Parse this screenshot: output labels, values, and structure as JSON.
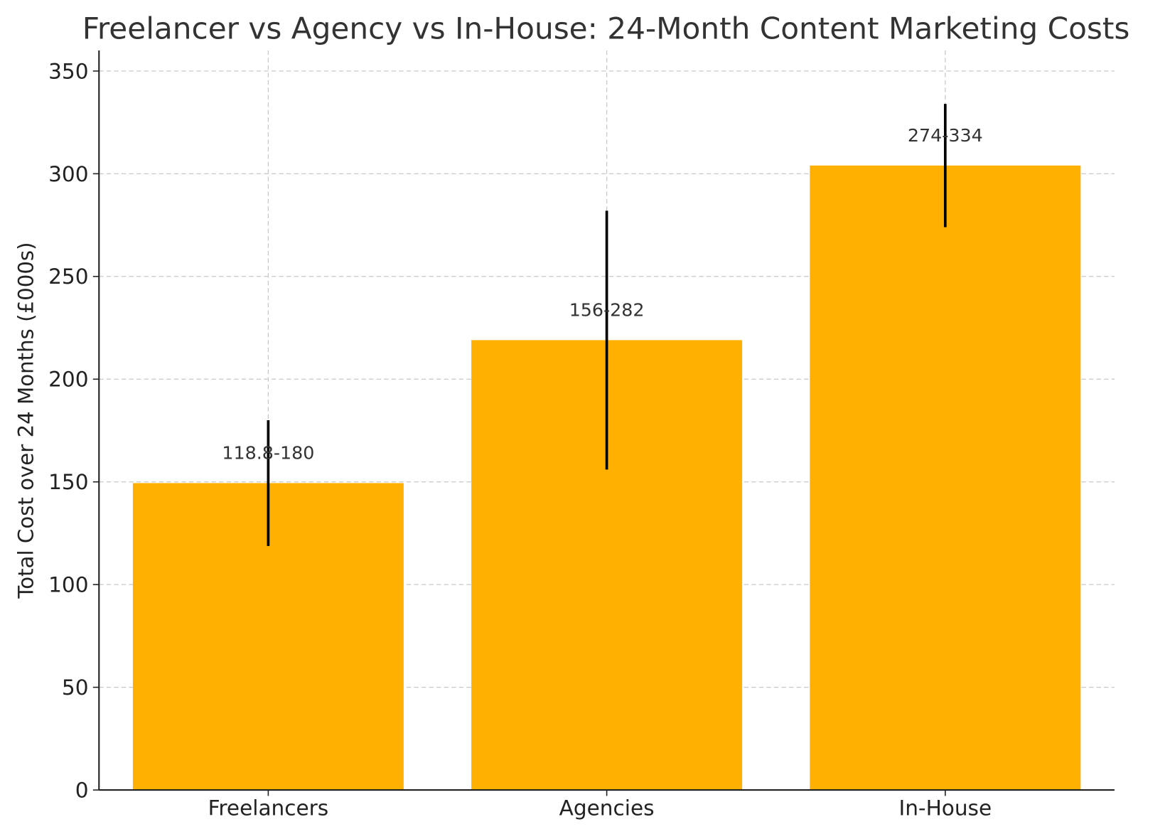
{
  "chart_data": {
    "type": "bar",
    "title": "Freelancer vs Agency vs In-House: 24-Month Content Marketing Costs",
    "xlabel": "",
    "ylabel": "Total Cost over 24 Months (£000s)",
    "ylim": [
      0,
      360
    ],
    "yticks": [
      "0",
      "50",
      "100",
      "150",
      "200",
      "250",
      "300",
      "350"
    ],
    "grid": true,
    "categories": [
      "Freelancers",
      "Agencies",
      "In-House"
    ],
    "values": [
      149.4,
      219,
      304
    ],
    "error_ranges": [
      [
        118.8,
        180
      ],
      [
        156,
        282
      ],
      [
        274,
        334
      ]
    ],
    "data_labels": [
      "118.8-180",
      "156-282",
      "274-334"
    ],
    "colors": {
      "bar": "#FFB000",
      "error": "#000000",
      "grid": "#c8c8c8",
      "text": "#333333"
    }
  }
}
